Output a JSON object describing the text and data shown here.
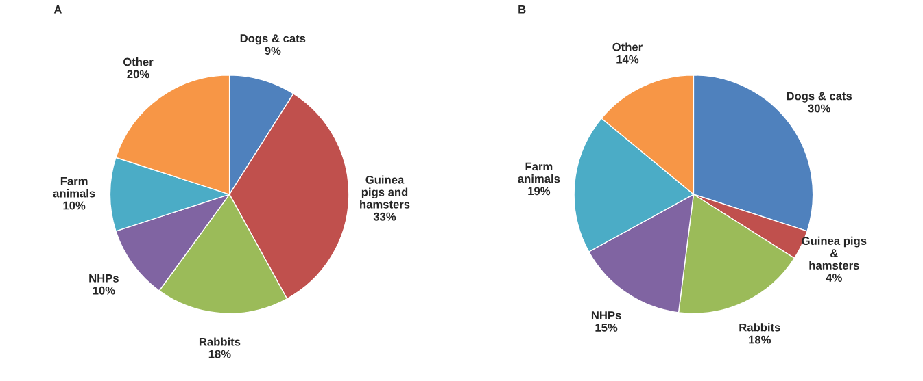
{
  "chart_data": [
    {
      "type": "pie",
      "title": "A",
      "categories": [
        "Dogs & cats",
        "Guinea\npigs and\nhamsters",
        "Rabbits",
        "NHPs",
        "Farm\nanimals",
        "Other"
      ],
      "values": [
        9,
        33,
        18,
        10,
        10,
        20
      ],
      "value_labels": [
        "9%",
        "33%",
        "18%",
        "10%",
        "10%",
        "20%"
      ],
      "colors": [
        "#4f81bd",
        "#c0504d",
        "#9bbb59",
        "#8064a2",
        "#4bacc6",
        "#f79646"
      ],
      "legend": false
    },
    {
      "type": "pie",
      "title": "B",
      "categories": [
        "Dogs & cats",
        "Guinea pigs\n&\nhamsters",
        "Rabbits",
        "NHPs",
        "Farm\nanimals",
        "Other"
      ],
      "values": [
        30,
        4,
        18,
        15,
        19,
        14
      ],
      "value_labels": [
        "30%",
        "4%",
        "18%",
        "15%",
        "19%",
        "14%"
      ],
      "colors": [
        "#4f81bd",
        "#c0504d",
        "#9bbb59",
        "#8064a2",
        "#4bacc6",
        "#f79646"
      ],
      "legend": false
    }
  ]
}
